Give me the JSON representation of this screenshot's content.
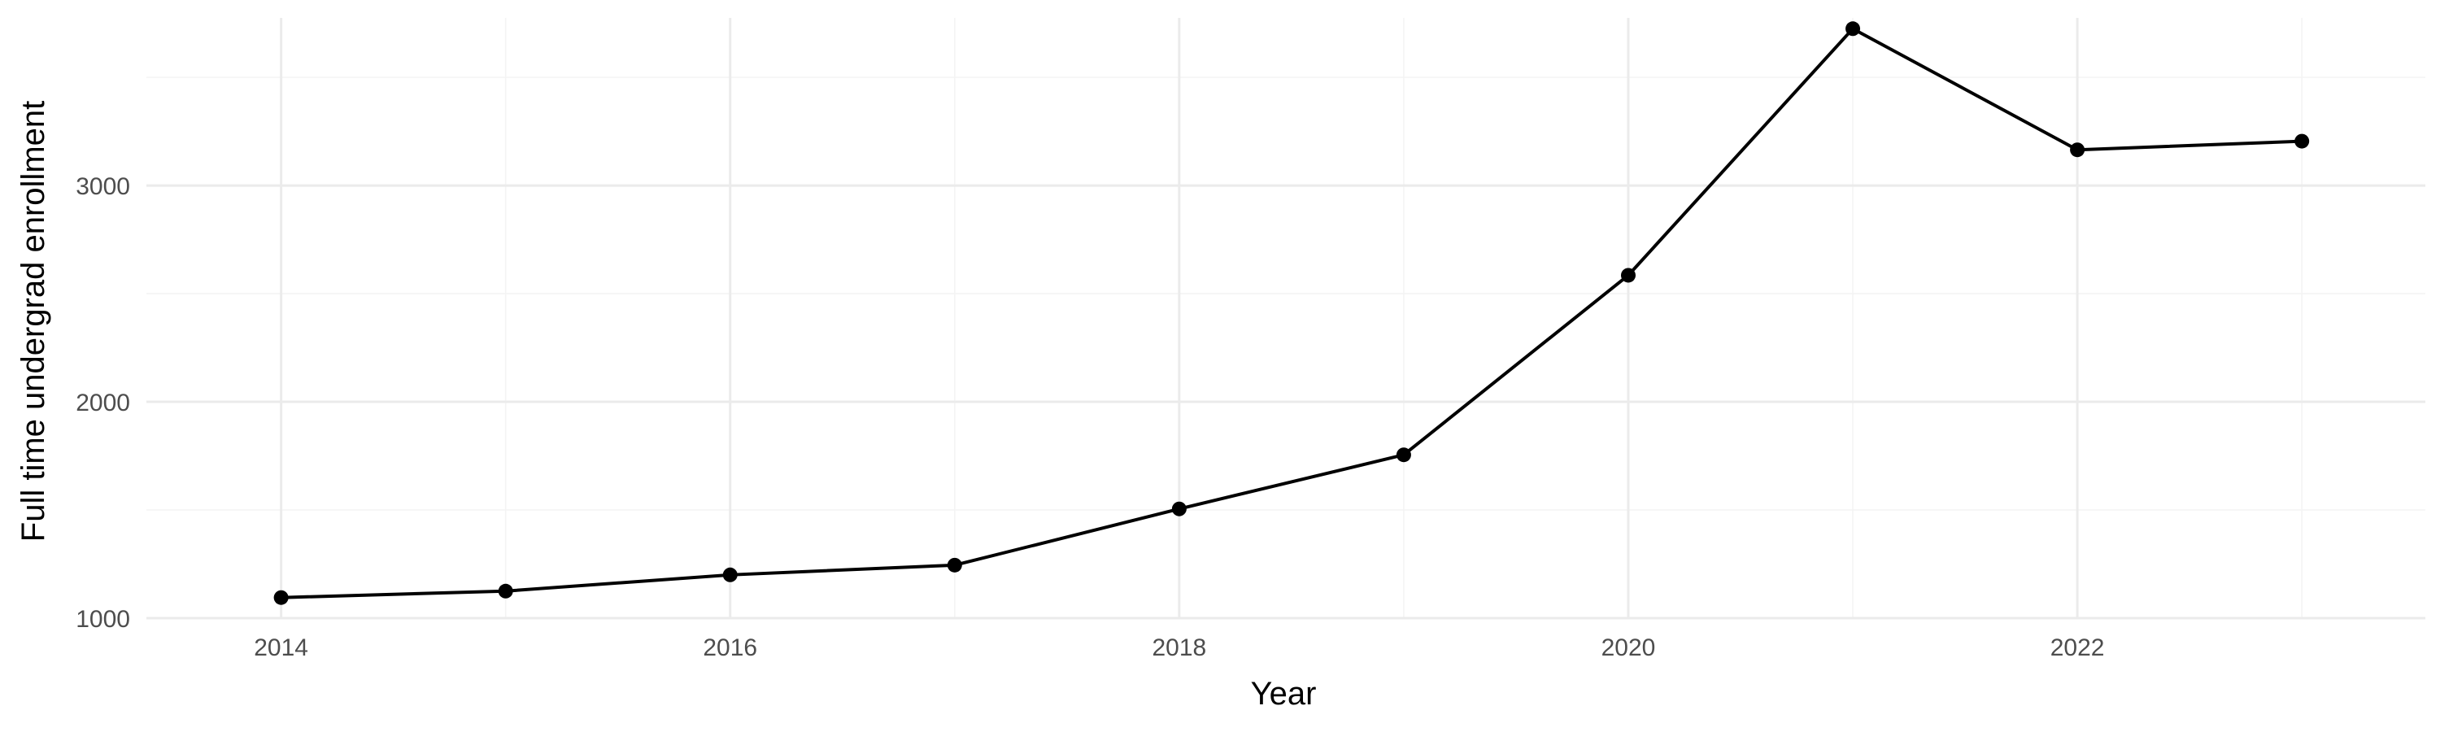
{
  "chart_data": {
    "type": "line",
    "title": "",
    "xlabel": "Year",
    "ylabel": "Full time undergrad enrollment",
    "x": [
      2014,
      2015,
      2016,
      2017,
      2018,
      2019,
      2020,
      2021,
      2022,
      2023
    ],
    "series": [
      {
        "values": [
          1095,
          1125,
          1200,
          1245,
          1505,
          1755,
          2585,
          3725,
          3165,
          3205
        ]
      }
    ],
    "xlim": [
      2013.4,
      2023.55
    ],
    "ylim": [
      1000,
      3775
    ],
    "x_ticks": [
      2014,
      2016,
      2018,
      2020,
      2022
    ],
    "x_tick_labels": [
      "2014",
      "2016",
      "2018",
      "2020",
      "2022"
    ],
    "y_ticks": [
      1000,
      2000,
      3000
    ],
    "y_tick_labels": [
      "1000",
      "2000",
      "3000"
    ],
    "x_minor_ticks": [
      2015,
      2017,
      2019,
      2021,
      2023
    ],
    "y_minor_ticks": [
      1500,
      2500,
      3500
    ],
    "grid": true,
    "legend": "none",
    "colors": {
      "line": "#000000",
      "grid": "#ebebeb",
      "background": "#ffffff"
    }
  }
}
